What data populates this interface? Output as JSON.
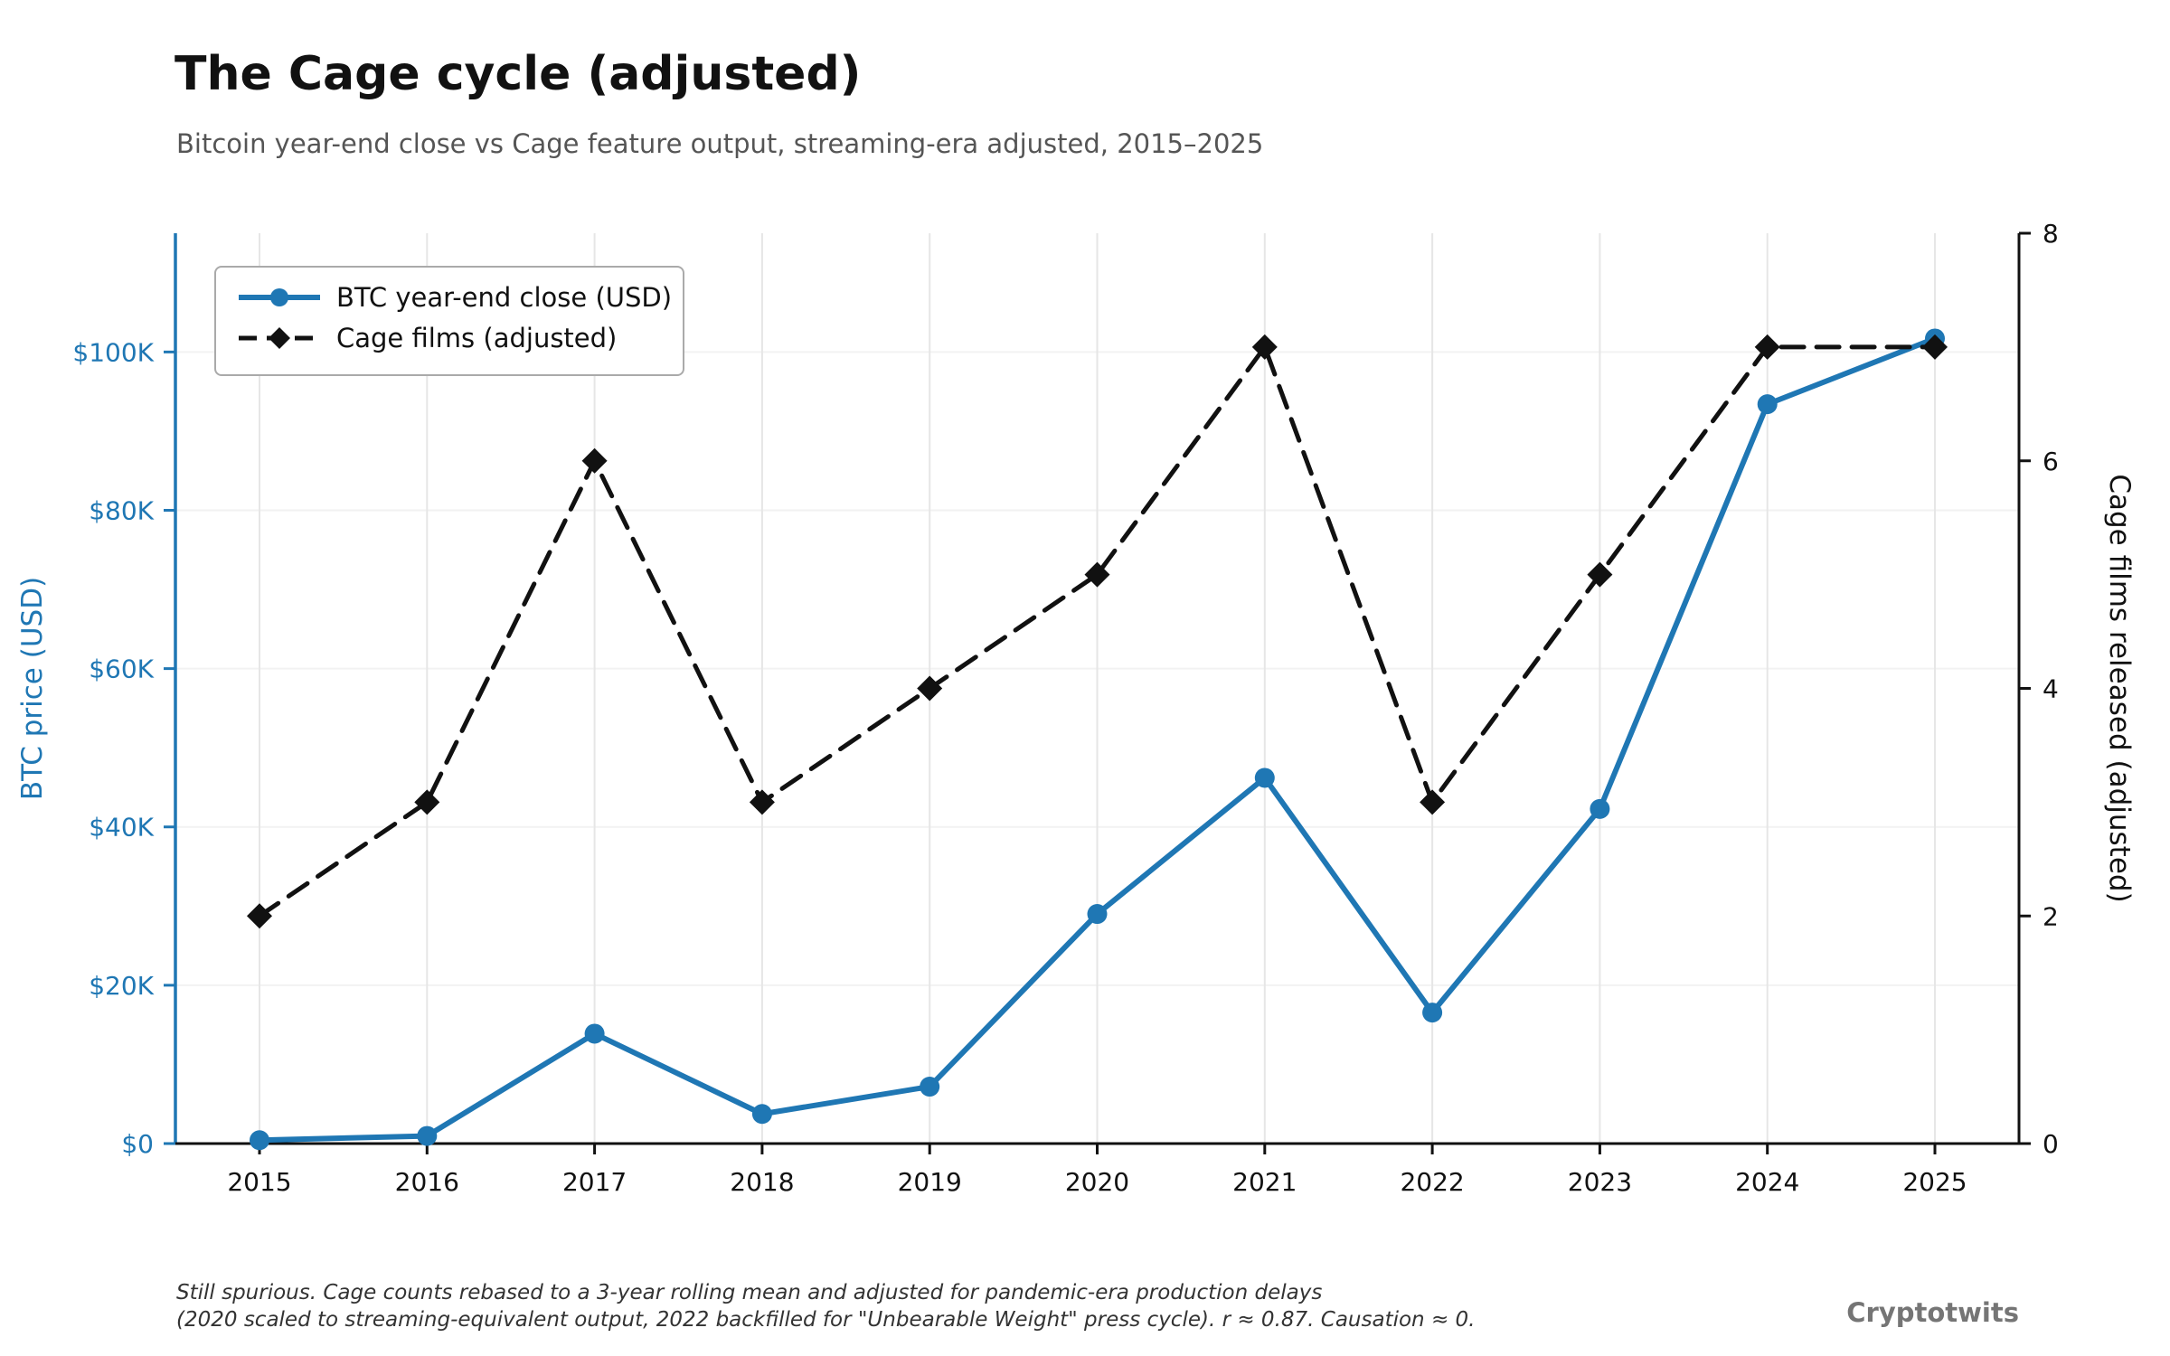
{
  "title": "The Cage cycle (adjusted)",
  "subtitle": "Bitcoin year-end close vs Cage feature output, streaming-era adjusted, 2015–2025",
  "footnote": {
    "line1": "Still spurious. Cage counts rebased to a 3-year rolling mean and adjusted for pandemic-era production delays",
    "line2": "(2020 scaled to streaming-equivalent output, 2022 backfilled for \"Unbearable Weight\" press cycle).  r ≈ 0.87.  Causation ≈ 0."
  },
  "brand": "Cryptotwits",
  "colors": {
    "btc": "#1f77b4",
    "cage": "#111111",
    "grid_vertical": "#e6e6e6",
    "grid_horizontal": "#f2f2f2",
    "axis_black": "#111111",
    "legend_border": "#aaaaaa",
    "subtitle": "#555555",
    "footnote": "#333333",
    "brand": "#757575"
  },
  "chart_data": {
    "type": "line",
    "x": [
      2015,
      2016,
      2017,
      2018,
      2019,
      2020,
      2021,
      2022,
      2023,
      2024,
      2025
    ],
    "series": [
      {
        "name": "BTC year-end close (USD)",
        "axis": "left",
        "color": "#1f77b4",
        "style": "solid",
        "marker": "circle",
        "values": [
          430,
          963,
          13880,
          3740,
          7190,
          29000,
          46200,
          16550,
          42270,
          93400,
          101700
        ]
      },
      {
        "name": "Cage films (adjusted)",
        "axis": "right",
        "color": "#111111",
        "style": "dashed",
        "marker": "diamond",
        "values": [
          2,
          3,
          6,
          3,
          4,
          5,
          7,
          3,
          5,
          7,
          7
        ]
      }
    ],
    "left_axis": {
      "label": "BTC price (USD)",
      "ticks": [
        0,
        20000,
        40000,
        60000,
        80000,
        100000
      ],
      "tick_labels": [
        "$0",
        "$20K",
        "$40K",
        "$60K",
        "$80K",
        "$100K"
      ],
      "range": [
        0,
        115000
      ]
    },
    "right_axis": {
      "label": "Cage films released (adjusted)",
      "ticks": [
        0,
        2,
        4,
        6,
        8
      ],
      "tick_labels": [
        "0",
        "2",
        "4",
        "6",
        "8"
      ],
      "range": [
        0,
        8
      ]
    },
    "x_axis": {
      "tick_labels": [
        "2015",
        "2016",
        "2017",
        "2018",
        "2019",
        "2020",
        "2021",
        "2022",
        "2023",
        "2024",
        "2025"
      ]
    },
    "legend": {
      "position": "top-left"
    }
  }
}
